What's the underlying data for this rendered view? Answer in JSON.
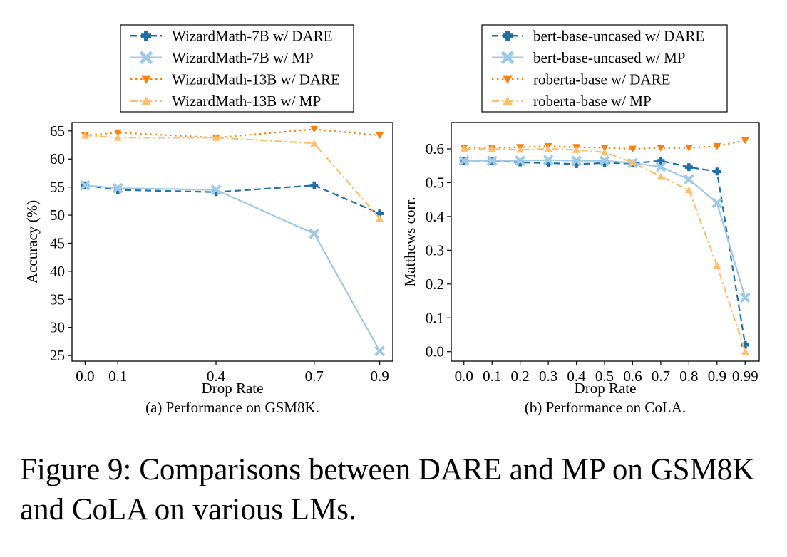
{
  "caption": "Figure 9: Comparisons between DARE and MP on GSM8K and CoLA on various LMs.",
  "colors": {
    "dark_blue": "#1f6fa9",
    "light_blue": "#9ecae8",
    "orange": "#ff7f0e",
    "light_orange": "#fdbf6f"
  },
  "chart_data": [
    {
      "type": "line",
      "subtitle": "(a) Performance on GSM8K.",
      "xlabel": "Drop Rate",
      "ylabel": "Accuracy (%)",
      "x": [
        0.0,
        0.1,
        0.4,
        0.7,
        0.9
      ],
      "x_tick_labels": [
        "0.0",
        "0.1",
        "0.4",
        "0.7",
        "0.9"
      ],
      "xlim": [
        -0.04,
        0.94
      ],
      "ylim": [
        24,
        66.5
      ],
      "y_ticks": [
        25,
        30,
        35,
        40,
        45,
        50,
        55,
        60,
        65
      ],
      "y_tick_labels": [
        "25",
        "30",
        "35",
        "40",
        "45",
        "50",
        "55",
        "60",
        "65"
      ],
      "grid": false,
      "legend": "top-center",
      "series": [
        {
          "name": "WizardMath-7B w/ DARE",
          "values": [
            55.3,
            54.5,
            54.1,
            55.3,
            50.3
          ],
          "color": "#1f6fa9",
          "dash": "dashed",
          "marker": "plus"
        },
        {
          "name": "WizardMath-7B w/ MP",
          "values": [
            55.3,
            54.8,
            54.5,
            46.7,
            25.8
          ],
          "color": "#9ecae8",
          "dash": "solid",
          "marker": "x"
        },
        {
          "name": "WizardMath-13B w/ DARE",
          "values": [
            64.2,
            64.7,
            63.8,
            65.3,
            64.2
          ],
          "color": "#ff7f0e",
          "dash": "dotted",
          "marker": "triangle-down"
        },
        {
          "name": "WizardMath-13B w/ MP",
          "values": [
            64.2,
            63.8,
            63.8,
            62.8,
            49.4
          ],
          "color": "#fdbf6f",
          "dash": "dashdot",
          "marker": "triangle-up"
        }
      ]
    },
    {
      "type": "line",
      "subtitle": "(b) Performance on CoLA.",
      "xlabel": "Drop Rate",
      "ylabel": "Matthews corr.",
      "x": [
        0,
        1,
        2,
        3,
        4,
        5,
        6,
        7,
        8,
        9,
        10
      ],
      "x_tick_labels": [
        "0.0",
        "0.1",
        "0.2",
        "0.3",
        "0.4",
        "0.5",
        "0.6",
        "0.7",
        "0.8",
        "0.9",
        "0.99"
      ],
      "xlim": [
        -0.45,
        10.5
      ],
      "ylim": [
        -0.028,
        0.678
      ],
      "y_ticks": [
        0.0,
        0.1,
        0.2,
        0.3,
        0.4,
        0.5,
        0.6
      ],
      "y_tick_labels": [
        "0.0",
        "0.1",
        "0.2",
        "0.3",
        "0.4",
        "0.5",
        "0.6"
      ],
      "grid": false,
      "legend": "top-center",
      "series": [
        {
          "name": "bert-base-uncased w/ DARE",
          "values": [
            0.565,
            0.565,
            0.56,
            0.558,
            0.555,
            0.558,
            0.557,
            0.565,
            0.546,
            0.533,
            0.02
          ],
          "color": "#1f6fa9",
          "dash": "dashed",
          "marker": "plus"
        },
        {
          "name": "bert-base-uncased w/ MP",
          "values": [
            0.565,
            0.565,
            0.565,
            0.567,
            0.565,
            0.565,
            0.558,
            0.547,
            0.51,
            0.44,
            0.16
          ],
          "color": "#9ecae8",
          "dash": "solid",
          "marker": "x"
        },
        {
          "name": "roberta-base w/ DARE",
          "values": [
            0.603,
            0.603,
            0.605,
            0.608,
            0.605,
            0.603,
            0.6,
            0.603,
            0.603,
            0.608,
            0.625
          ],
          "color": "#ff7f0e",
          "dash": "dotted",
          "marker": "triangle-down"
        },
        {
          "name": "roberta-base w/ MP",
          "values": [
            0.6,
            0.6,
            0.598,
            0.6,
            0.597,
            0.59,
            0.56,
            0.518,
            0.478,
            0.255,
            0.0
          ],
          "color": "#fdbf6f",
          "dash": "dashdot",
          "marker": "triangle-up"
        }
      ]
    }
  ]
}
